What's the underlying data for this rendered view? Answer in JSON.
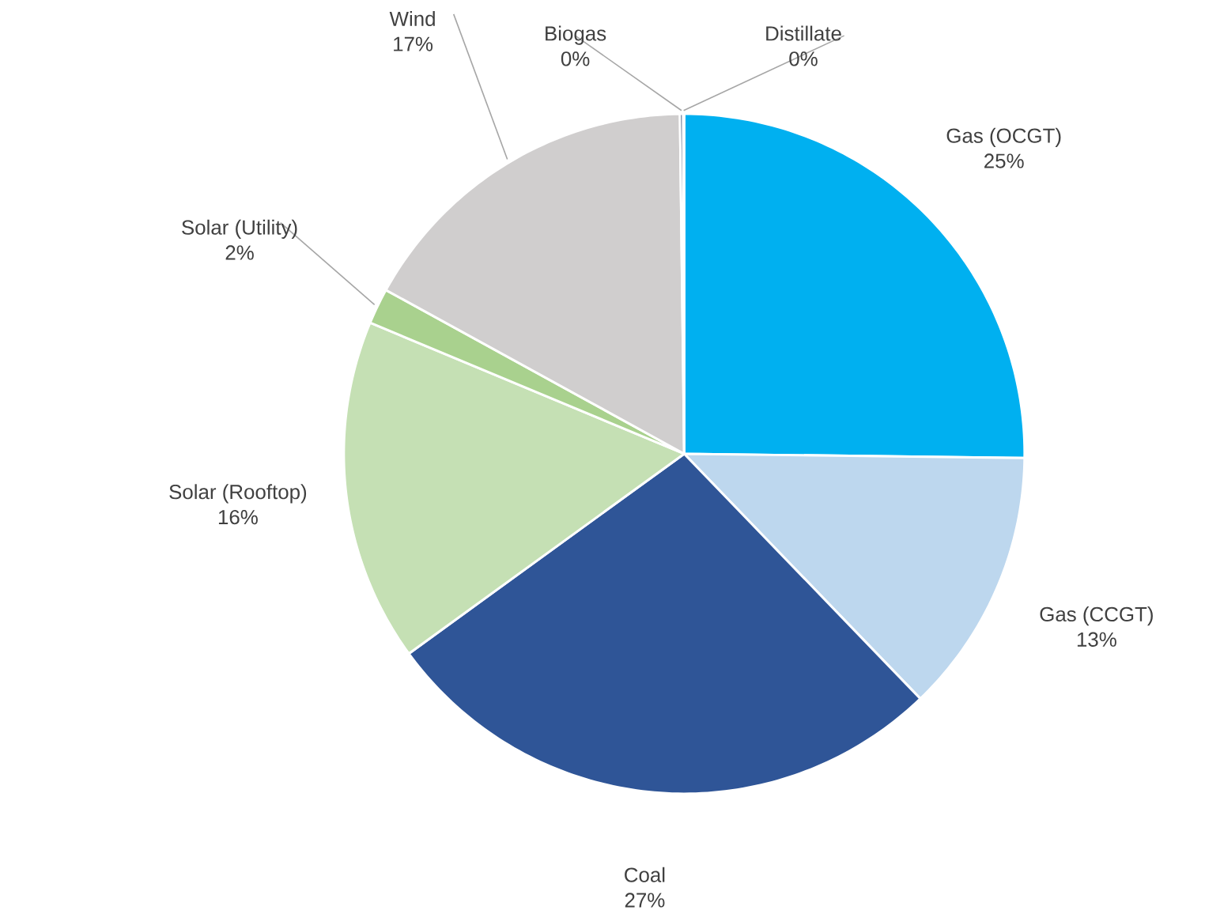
{
  "chart_data": {
    "type": "pie",
    "categories": [
      "Gas (OCGT)",
      "Gas (CCGT)",
      "Coal",
      "Solar (Rooftop)",
      "Solar (Utility)",
      "Wind",
      "Biogas",
      "Distillate"
    ],
    "values": [
      25.2,
      12.6,
      27.2,
      16.3,
      1.7,
      16.8,
      0.15,
      0.05
    ],
    "value_labels": [
      "25%",
      "13%",
      "27%",
      "16%",
      "2%",
      "17%",
      "0%",
      "0%"
    ],
    "colors": [
      "#00b0f0",
      "#bdd7ee",
      "#2f5597",
      "#c5e0b4",
      "#a9d18e",
      "#d0cece",
      "#1f3864",
      "#bdd7ee"
    ],
    "legend": false
  }
}
